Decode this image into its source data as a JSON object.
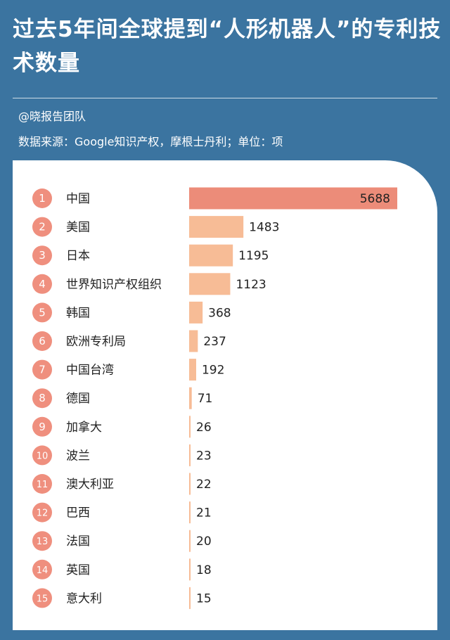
{
  "header": {
    "title": "过去5年间全球提到“人形机器人”的专利技术数量",
    "author": "@晓报告团队",
    "source": "数据来源：Google知识产权，摩根士丹利；单位：项"
  },
  "colors": {
    "background": "#3b74a0",
    "top_bar": "#ec8c79",
    "bar": "#f7bc96",
    "rank_circle": "#ef8f7e"
  },
  "chart_data": {
    "type": "bar",
    "orientation": "horizontal",
    "ranks": [
      "1",
      "2",
      "3",
      "4",
      "5",
      "6",
      "7",
      "8",
      "9",
      "10",
      "11",
      "12",
      "13",
      "14",
      "15"
    ],
    "categories": [
      "中国",
      "美国",
      "日本",
      "世界知识产权组织",
      "韩国",
      "欧洲专利局",
      "中国台湾",
      "德国",
      "加拿大",
      "波兰",
      "澳大利亚",
      "巴西",
      "法国",
      "英国",
      "意大利"
    ],
    "values": [
      5688,
      1483,
      1195,
      1123,
      368,
      237,
      192,
      71,
      26,
      23,
      22,
      21,
      20,
      18,
      15
    ],
    "xlim": [
      0,
      5688
    ],
    "grid": false,
    "legend": "none"
  }
}
